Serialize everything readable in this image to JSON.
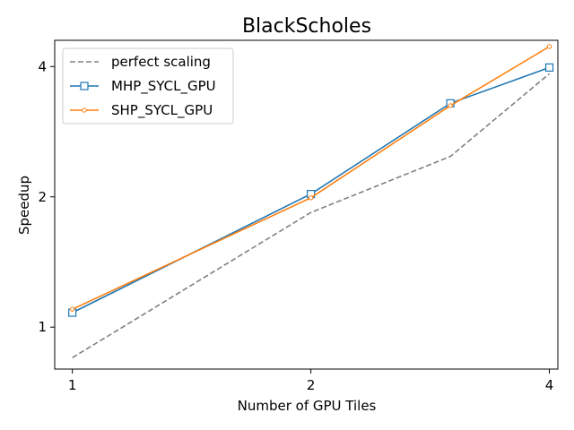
{
  "chart_data": {
    "type": "line",
    "title": "BlackScholes",
    "xlabel": "Number of GPU Tiles",
    "ylabel": "Speedup",
    "x_scale": "log2",
    "y_scale": "log2",
    "x_ticks": [
      1,
      2,
      4
    ],
    "x_tick_labels": [
      "1",
      "2",
      "4"
    ],
    "y_ticks": [
      1,
      2,
      4
    ],
    "y_tick_labels": [
      "1",
      "2",
      "4"
    ],
    "xlim": [
      0.95,
      4.1
    ],
    "ylim": [
      0.8,
      4.6
    ],
    "grid": false,
    "legend_position": "top-left",
    "series": [
      {
        "name": "perfect scaling",
        "x": [
          1,
          2,
          3,
          4
        ],
        "values": [
          0.85,
          1.84,
          2.48,
          3.85
        ],
        "color": "#808080",
        "style": "dashed",
        "marker": "none"
      },
      {
        "name": "MHP_SYCL_GPU",
        "x": [
          1,
          2,
          3,
          4
        ],
        "values": [
          1.08,
          2.03,
          3.29,
          3.98
        ],
        "color": "#1f77b4",
        "style": "solid",
        "marker": "square"
      },
      {
        "name": "SHP_SYCL_GPU",
        "x": [
          1,
          2,
          3,
          4
        ],
        "values": [
          1.1,
          1.99,
          3.25,
          4.45
        ],
        "color": "#ff7f0e",
        "style": "solid",
        "marker": "circle"
      }
    ]
  }
}
